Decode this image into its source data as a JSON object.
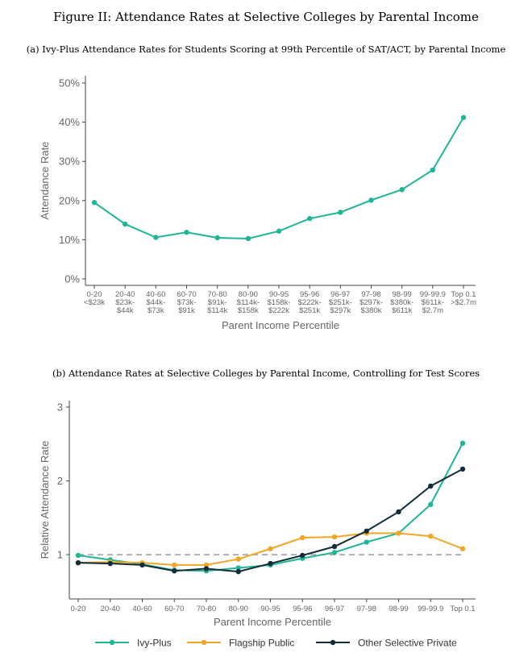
{
  "figure_title": "Figure II: Attendance Rates at Selective Colleges by Parental Income",
  "chart_data": [
    {
      "type": "line",
      "title": "(a) Ivy-Plus Attendance Rates for Students Scoring at 99th Percentile of SAT/ACT, by Parental Income",
      "xlabel": "Parent Income Percentile",
      "ylabel": "Attendance Rate",
      "ylim": [
        0,
        50
      ],
      "yticks": [
        "0%",
        "10%",
        "20%",
        "30%",
        "40%",
        "50%"
      ],
      "grid": false,
      "categories": [
        [
          "0-20",
          "<$23k"
        ],
        [
          "20-40",
          "$23k-",
          "$44k"
        ],
        [
          "40-60",
          "$44k-",
          "$73k"
        ],
        [
          "60-70",
          "$73k-",
          "$91k"
        ],
        [
          "70-80",
          "$91k-",
          "$114k"
        ],
        [
          "80-90",
          "$114k-",
          "$158k"
        ],
        [
          "90-95",
          "$158k-",
          "$222k"
        ],
        [
          "95-96",
          "$222k-",
          "$251k"
        ],
        [
          "96-97",
          "$251k-",
          "$297k"
        ],
        [
          "97-98",
          "$297k-",
          "$380k"
        ],
        [
          "98-99",
          "$380k-",
          "$611k"
        ],
        [
          "99-99.9",
          "$611k-",
          "$2.7m"
        ],
        [
          "Top 0.1",
          ">$2.7m"
        ]
      ],
      "series": [
        {
          "color": "#1fb596",
          "values": [
            19.5,
            14.0,
            10.6,
            11.9,
            10.5,
            10.3,
            12.2,
            15.4,
            17.0,
            20.1,
            22.8,
            27.8,
            41.2
          ]
        }
      ]
    },
    {
      "type": "line",
      "title": "(b) Attendance Rates at Selective Colleges by Parental Income, Controlling for Test Scores",
      "xlabel": "Parent Income Percentile",
      "ylabel": "Relative Attendance Rate",
      "ylim": [
        0.4,
        3.0
      ],
      "yticks": [
        "1",
        "2",
        "3"
      ],
      "reference_line": 1,
      "grid": false,
      "legend_position": "bottom",
      "categories": [
        "0-20",
        "20-40",
        "40-60",
        "60-70",
        "70-80",
        "80-90",
        "90-95",
        "95-96",
        "96-97",
        "97-98",
        "98-99",
        "99-99.9",
        "Top 0.1"
      ],
      "series": [
        {
          "name": "Ivy-Plus",
          "color": "#1fb596",
          "values": [
            0.99,
            0.93,
            0.87,
            0.79,
            0.78,
            0.82,
            0.86,
            0.95,
            1.03,
            1.17,
            1.29,
            1.68,
            2.51
          ]
        },
        {
          "name": "Flagship Public",
          "color": "#f1a628",
          "values": [
            0.89,
            0.9,
            0.89,
            0.86,
            0.86,
            0.94,
            1.08,
            1.23,
            1.24,
            1.29,
            1.29,
            1.25,
            1.08
          ]
        },
        {
          "name": "Other Selective Private",
          "color": "#0f2d3a",
          "values": [
            0.89,
            0.88,
            0.86,
            0.78,
            0.81,
            0.77,
            0.88,
            0.99,
            1.11,
            1.32,
            1.58,
            1.93,
            2.16
          ]
        }
      ]
    }
  ]
}
